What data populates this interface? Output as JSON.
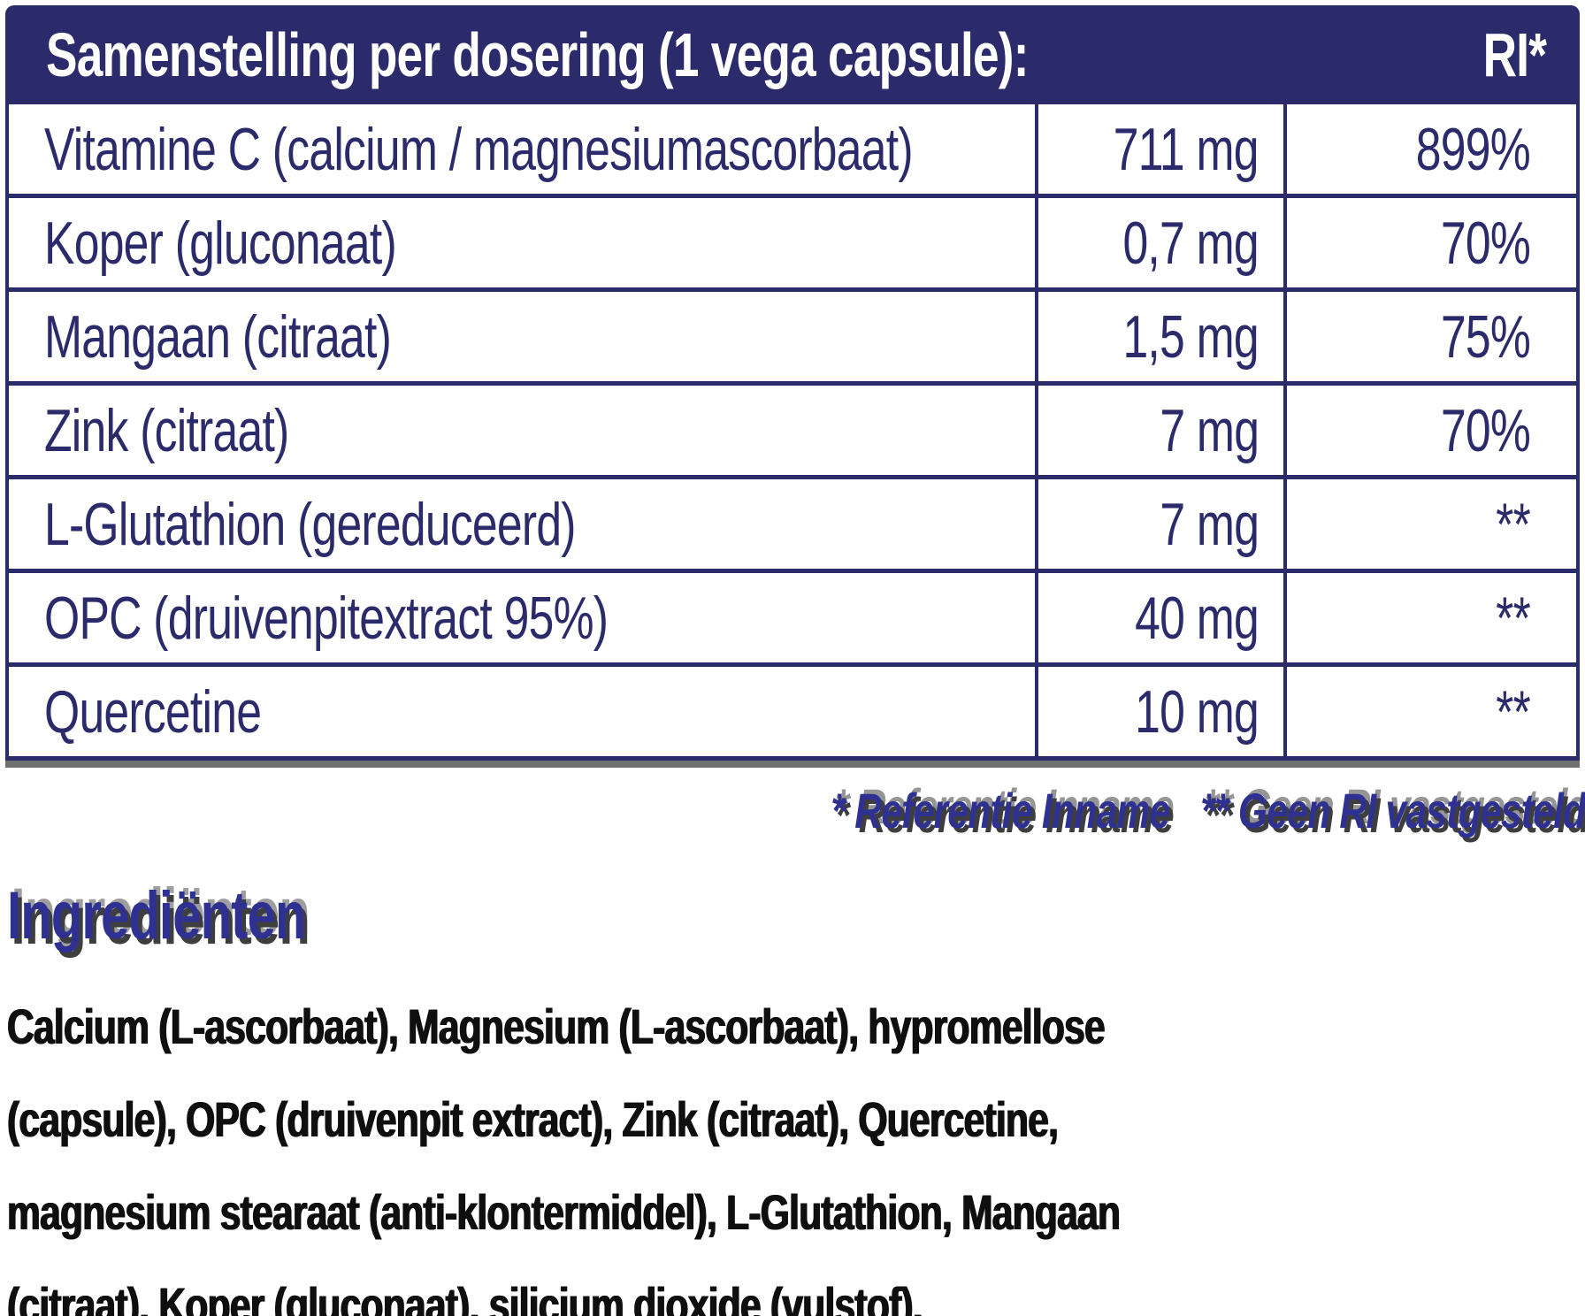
{
  "colors": {
    "navy": "#2b2a6b",
    "accent_blue": "#2e3192",
    "shadow_gray": "#3e3e3e",
    "text_black": "#0f0f0f",
    "background": "#ffffff"
  },
  "table": {
    "header": {
      "title": "Samenstelling per dosering (1 vega capsule):",
      "ri_label": "RI*"
    },
    "rows": [
      {
        "name": "Vitamine C (calcium / magnesiumascorbaat)",
        "amount": "711 mg",
        "ri": "899%"
      },
      {
        "name": "Koper (gluconaat)",
        "amount": "0,7 mg",
        "ri": "70%"
      },
      {
        "name": "Mangaan (citraat)",
        "amount": "1,5 mg",
        "ri": "75%"
      },
      {
        "name": "Zink (citraat)",
        "amount": "7 mg",
        "ri": "70%"
      },
      {
        "name": "L-Glutathion (gereduceerd)",
        "amount": "7 mg",
        "ri": "**"
      },
      {
        "name": "OPC (druivenpitextract 95%)",
        "amount": "40 mg",
        "ri": "**"
      },
      {
        "name": "Quercetine",
        "amount": "10 mg",
        "ri": "**"
      }
    ],
    "footnotes": {
      "ri_reference": "* Referentie Inname",
      "no_ri": "** Geen RI vastgesteld"
    }
  },
  "ingredients": {
    "heading": "Ingrediënten",
    "lines": [
      "Calcium (L-ascorbaat), Magnesium (L-ascorbaat), hypromellose",
      "(capsule), OPC (druivenpit extract), Zink (citraat), Quercetine,",
      "magnesium stearaat (anti-klontermiddel), L-Glutathion, Mangaan",
      "(citraat), Koper (gluconaat), silicium dioxide (vulstof)."
    ]
  }
}
